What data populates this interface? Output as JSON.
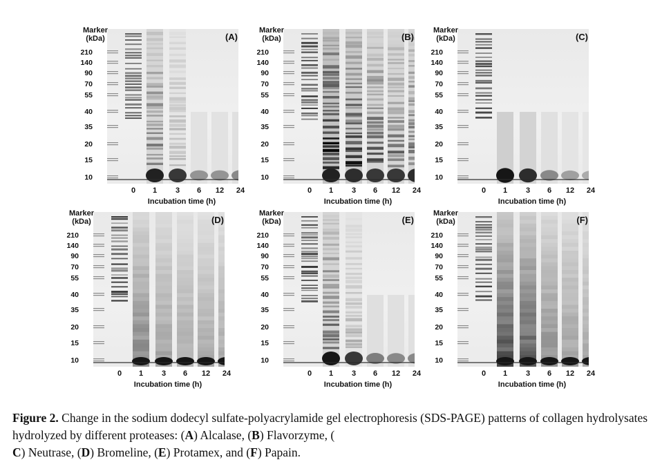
{
  "figure": {
    "marker_title_line1": "Marker",
    "marker_title_line2": "(kDa)",
    "kda_ticks": [
      "210",
      "140",
      "90",
      "70",
      "55",
      "40",
      "35",
      "20",
      "15",
      "10"
    ],
    "lanes": [
      "0",
      "1",
      "3",
      "6",
      "12",
      "24"
    ],
    "xaxis_title": "Incubation time (h)",
    "panels": [
      {
        "letter": "(A)",
        "enzyme": "Alcalase"
      },
      {
        "letter": "(B)",
        "enzyme": "Flavorzyme"
      },
      {
        "letter": "(C)",
        "enzyme": "Neutrase"
      },
      {
        "letter": "(D)",
        "enzyme": "Bromeline"
      },
      {
        "letter": "(E)",
        "enzyme": "Protamex"
      },
      {
        "letter": "(F)",
        "enzyme": "Papain"
      }
    ]
  },
  "caption": {
    "label": "Figure 2.",
    "text_1": " Change in the sodium dodecyl sulfate-polyacrylamide gel electrophoresis (SDS-PAGE) patterns of collagen hydrolysates hydrolyzed by different proteases: (",
    "a": "A",
    "t_a": ") Alcalase, (",
    "b": "B",
    "t_b": ") Flavorzyme, (",
    "c": "C",
    "t_c": ") Neutrase, (",
    "d": "D",
    "t_d": ") Bromeline, (",
    "e": "E",
    "t_e": ") Protamex, and (",
    "f": "F",
    "t_f": ") Papain."
  }
}
